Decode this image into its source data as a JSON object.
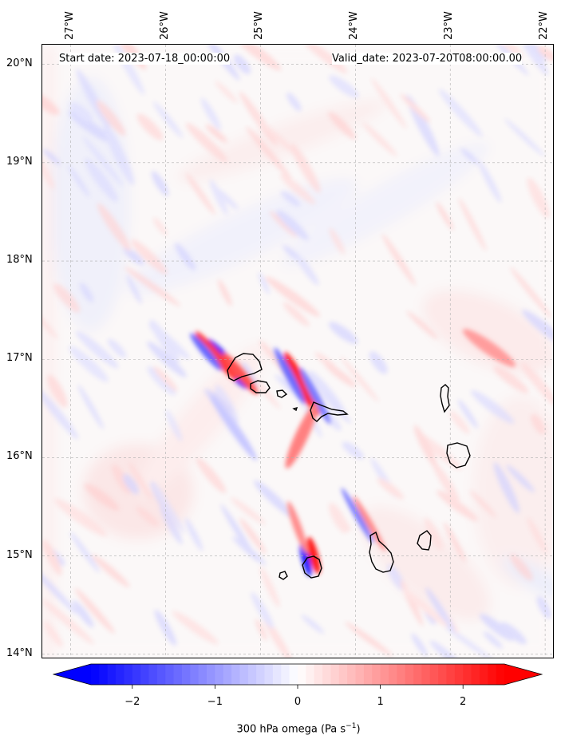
{
  "info": {
    "start_date": "Start date: 2023-07-18_00:00:00",
    "valid_date": "Valid_date: 2023-07-20T08:00:00.00"
  },
  "longitude_labels": [
    "27°W",
    "26°W",
    "25°W",
    "24°W",
    "23°W",
    "22°W"
  ],
  "latitude_labels": [
    "20°N",
    "19°N",
    "18°N",
    "17°N",
    "16°N",
    "15°N",
    "14°N"
  ],
  "colorbar": {
    "label_prefix": "300 hPa omega (Pa s",
    "label_exp": "−1",
    "label_suffix": ")",
    "ticks": [
      "−2",
      "−1",
      "0",
      "1",
      "2"
    ],
    "tick_values": [
      -2,
      -1,
      0,
      1,
      2
    ],
    "range": [
      -2.5,
      2.5
    ],
    "low_color": "#0000ff",
    "mid_color": "#ffffff",
    "high_color": "#ff0000"
  },
  "map": {
    "lon_range": [
      -27.3,
      -21.9
    ],
    "lat_range": [
      13.95,
      20.2
    ],
    "lon_ticks": [
      -27,
      -26,
      -25,
      -24,
      -23,
      -22
    ],
    "lat_ticks": [
      20,
      19,
      18,
      17,
      16,
      15,
      14
    ]
  }
}
